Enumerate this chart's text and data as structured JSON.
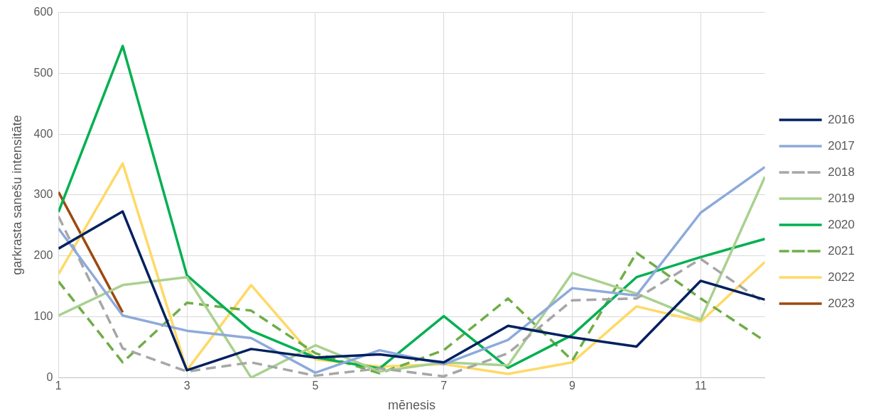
{
  "chart_data": {
    "type": "line",
    "xlabel": "mēnesis",
    "ylabel": "garkrasta sanešu intensitāte",
    "x": [
      1,
      2,
      3,
      4,
      5,
      6,
      7,
      8,
      9,
      10,
      11,
      12
    ],
    "xlim": [
      1,
      12
    ],
    "xticks": [
      1,
      3,
      5,
      7,
      9,
      11
    ],
    "ylim": [
      0,
      600
    ],
    "yticks": [
      0,
      100,
      200,
      300,
      400,
      500,
      600
    ],
    "grid": true,
    "legend": "right",
    "marker": "none",
    "series": [
      {
        "name": "2016",
        "color": "#002060",
        "values": [
          212,
          273,
          12,
          47,
          33,
          38,
          25,
          85,
          66,
          51,
          159,
          128
        ]
      },
      {
        "name": "2017",
        "color": "#8eaadb",
        "values": [
          245,
          102,
          77,
          65,
          8,
          45,
          22,
          62,
          147,
          135,
          271,
          346
        ]
      },
      {
        "name": "2018",
        "color": "#a6a6a6",
        "line_style": "dashed",
        "values": [
          265,
          48,
          10,
          25,
          3,
          15,
          2,
          40,
          127,
          130,
          195,
          122
        ]
      },
      {
        "name": "2019",
        "color": "#a9d18e",
        "values": [
          102,
          152,
          165,
          0,
          53,
          10,
          25,
          20,
          172,
          138,
          95,
          330
        ]
      },
      {
        "name": "2020",
        "color": "#00b050",
        "values": [
          272,
          545,
          168,
          77,
          33,
          15,
          101,
          16,
          70,
          165,
          198,
          228
        ]
      },
      {
        "name": "2021",
        "color": "#70ad47",
        "line_style": "dashed",
        "values": [
          158,
          25,
          123,
          110,
          40,
          7,
          45,
          130,
          28,
          205,
          130,
          60
        ]
      },
      {
        "name": "2022",
        "color": "#ffd966",
        "values": [
          170,
          352,
          12,
          152,
          30,
          18,
          22,
          6,
          25,
          117,
          92,
          190
        ]
      },
      {
        "name": "2023",
        "color": "#9c4a0e",
        "values": [
          305,
          107,
          null,
          null,
          null,
          null,
          null,
          null,
          null,
          null,
          null,
          null
        ]
      }
    ]
  }
}
